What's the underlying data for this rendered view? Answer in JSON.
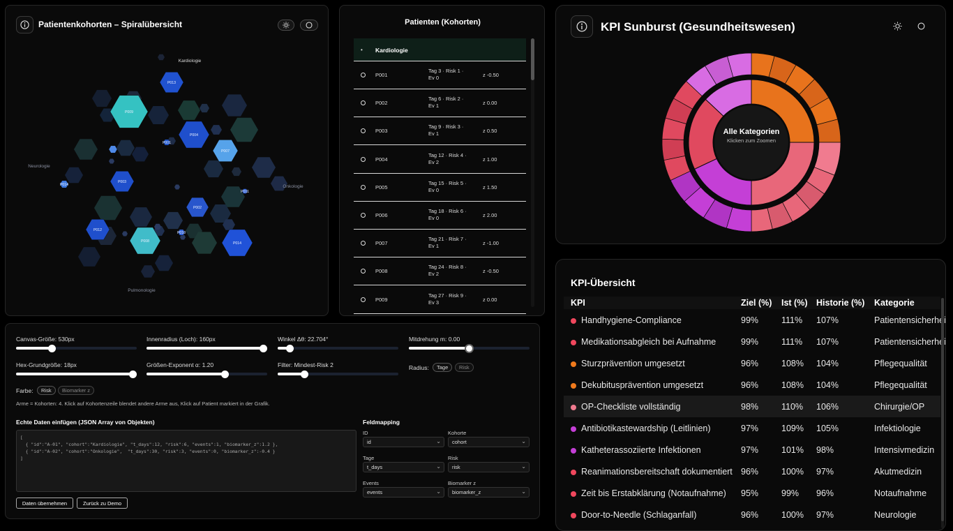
{
  "spiral": {
    "title": "Patientenkohorten – Spiralübersicht",
    "axis_labels": {
      "top": "Kardiologie",
      "left": "Neurologie",
      "right": "Onkologie",
      "bottom": "Pulmonologie"
    },
    "patients": [
      "P001",
      "P002",
      "P003",
      "P004",
      "P005",
      "P006",
      "P007",
      "P008",
      "P009",
      "P010",
      "P011",
      "P012",
      "P013",
      "P014"
    ]
  },
  "patient_list": {
    "title": "Patienten (Kohorten)",
    "cohort_header": "Kardiologie",
    "rows": [
      {
        "id": "P001",
        "info_1": "Tag 3 · Risk 1 ·",
        "info_2": "Ev 0",
        "z": "z -0.50"
      },
      {
        "id": "P002",
        "info_1": "Tag 6 · Risk 2 ·",
        "info_2": "Ev 1",
        "z": "z 0.00"
      },
      {
        "id": "P003",
        "info_1": "Tag 9 · Risk 3 ·",
        "info_2": "Ev 1",
        "z": "z 0.50"
      },
      {
        "id": "P004",
        "info_1": "Tag 12 · Risk 4 ·",
        "info_2": "Ev 2",
        "z": "z 1.00"
      },
      {
        "id": "P005",
        "info_1": "Tag 15 · Risk 5 ·",
        "info_2": "Ev 0",
        "z": "z 1.50"
      },
      {
        "id": "P006",
        "info_1": "Tag 18 · Risk 6 ·",
        "info_2": "Ev 0",
        "z": "z 2.00"
      },
      {
        "id": "P007",
        "info_1": "Tag 21 · Risk 7 ·",
        "info_2": "Ev 1",
        "z": "z -1.00"
      },
      {
        "id": "P008",
        "info_1": "Tag 24 · Risk 8 ·",
        "info_2": "Ev 2",
        "z": "z -0.50"
      },
      {
        "id": "P009",
        "info_1": "Tag 27 · Risk 9 ·",
        "info_2": "Ev 3",
        "z": "z 0.00"
      }
    ]
  },
  "controls": {
    "canvas_size": {
      "label": "Canvas-Größe: 530px",
      "level": 0.3
    },
    "inner_radius": {
      "label": "Innenradius (Loch): 160px",
      "level": 0.97
    },
    "angle_step": {
      "label": "Winkel Δθ: 22.704°",
      "level": 0.1
    },
    "co_rotation": {
      "label": "Mitdrehung m: 0.00",
      "level": 0.5
    },
    "hex_size": {
      "label": "Hex-Grundgröße: 18px",
      "level": 0.97
    },
    "size_exponent": {
      "label": "Größen-Exponent α: 1.20",
      "level": 0.65
    },
    "min_risk": {
      "label": "Filter: Mindest-Risk 2",
      "level": 0.22
    },
    "radius_label": "Radius:",
    "radius_options": [
      "Tage",
      "Risk"
    ],
    "color_label": "Farbe:",
    "color_options": [
      "Risk",
      "Biomarker z"
    ],
    "help_text": "Arme = Kohorten: 4. Klick auf Kohortenzeile blendet andere Arme aus, Klick auf Patient markiert in der Grafik.",
    "json_title": "Echte Daten einfügen (JSON Array von Objekten)",
    "json_text": "[\n  { \"id\":\"A-01\", \"cohort\":\"Kardiologie\", \"t_days\":12, \"risk\":6, \"events\":1, \"biomarker_z\":1.2 },\n  { \"id\":\"A-02\", \"cohort\":\"Onkologie\",  \"t_days\":30, \"risk\":3, \"events\":0, \"biomarker_z\":-0.4 }\n]",
    "apply_button": "Daten übernehmen",
    "reset_button": "Zurück zu Demo",
    "mapping_title": "Feldmapping",
    "mapping": [
      {
        "label": "ID",
        "value": "id"
      },
      {
        "label": "Kohorte",
        "value": "cohort"
      },
      {
        "label": "Tage",
        "value": "t_days"
      },
      {
        "label": "Risk",
        "value": "risk"
      },
      {
        "label": "Events",
        "value": "events"
      },
      {
        "label": "Biomarker z",
        "value": "biomarker_z"
      }
    ]
  },
  "sunburst": {
    "title": "KPI Sunburst (Gesundheitswesen)",
    "center_title": "Alle Kategorien",
    "center_hint": "Klicken zum Zoomen",
    "inner_ring": [
      {
        "value": 25,
        "color": "#e8731c"
      },
      {
        "value": 25,
        "color": "#e8677a"
      },
      {
        "value": 18,
        "color": "#c43fd6"
      },
      {
        "value": 19,
        "color": "#e0495f"
      },
      {
        "value": 13,
        "color": "#d86ce3"
      }
    ],
    "outer_ring": [
      {
        "value": 25,
        "colors": [
          "#e8731c",
          "#d8651a"
        ],
        "count": 6
      },
      {
        "value": 6,
        "colors": [
          "#f07b8f"
        ],
        "count": 1
      },
      {
        "value": 19,
        "colors": [
          "#e8677a",
          "#d85b6e"
        ],
        "count": 5
      },
      {
        "value": 18,
        "colors": [
          "#c43fd6",
          "#b035c4"
        ],
        "count": 4
      },
      {
        "value": 19,
        "colors": [
          "#e0495f",
          "#d03e54"
        ],
        "count": 5
      },
      {
        "value": 13,
        "colors": [
          "#d86ce3",
          "#c85ed3"
        ],
        "count": 3
      }
    ]
  },
  "kpi_table": {
    "title": "KPI-Übersicht",
    "headers": [
      "KPI",
      "Ziel (%)",
      "Ist (%)",
      "Historie (%)",
      "Kategorie"
    ],
    "rows": [
      {
        "name": "Handhygiene-Compliance",
        "ziel": "99%",
        "ist": "111%",
        "hist": "107%",
        "cat": "Patientensicherheit",
        "color": "#f0475d"
      },
      {
        "name": "Medikationsabgleich bei Aufnahme",
        "ziel": "99%",
        "ist": "111%",
        "hist": "107%",
        "cat": "Patientensicherheit",
        "color": "#f0475d"
      },
      {
        "name": "Sturzprävention umgesetzt",
        "ziel": "96%",
        "ist": "108%",
        "hist": "104%",
        "cat": "Pflegequalität",
        "color": "#f07a1c"
      },
      {
        "name": "Dekubitusprävention umgesetzt",
        "ziel": "96%",
        "ist": "108%",
        "hist": "104%",
        "cat": "Pflegequalität",
        "color": "#f07a1c"
      },
      {
        "name": "OP-Checkliste vollständig",
        "ziel": "98%",
        "ist": "110%",
        "hist": "106%",
        "cat": "Chirurgie/OP",
        "color": "#f07b8f"
      },
      {
        "name": "Antibiotikastewardship (Leitlinien)",
        "ziel": "97%",
        "ist": "109%",
        "hist": "105%",
        "cat": "Infektiologie",
        "color": "#c43fd6"
      },
      {
        "name": "Katheterassoziierte Infektionen",
        "ziel": "97%",
        "ist": "101%",
        "hist": "98%",
        "cat": "Intensivmedizin",
        "color": "#c43fd6"
      },
      {
        "name": "Reanimationsbereitschaft dokumentiert",
        "ziel": "96%",
        "ist": "100%",
        "hist": "97%",
        "cat": "Akutmedizin",
        "color": "#f0475d"
      },
      {
        "name": "Zeit bis Erstabklärung (Notaufnahme)",
        "ziel": "95%",
        "ist": "99%",
        "hist": "96%",
        "cat": "Notaufnahme",
        "color": "#f0475d"
      },
      {
        "name": "Door-to-Needle (Schlaganfall)",
        "ziel": "96%",
        "ist": "100%",
        "hist": "97%",
        "cat": "Neurologie",
        "color": "#f0475d"
      }
    ]
  }
}
